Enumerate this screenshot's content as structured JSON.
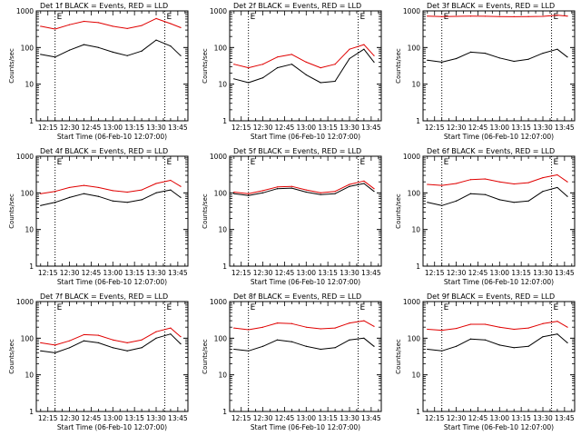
{
  "figure": {
    "colors": {
      "events": "#000000",
      "lld": "#e00000",
      "axis": "#000000"
    }
  },
  "chart_data": [
    {
      "type": "line",
      "title": "Det 1f BLACK = Events, RED = LLD",
      "xlabel": "Start Time (06-Feb-10 12:07:00)",
      "ylabel": "Counts/sec",
      "xlim": [
        "12:07",
        "13:52"
      ],
      "ylim": [
        1,
        1000
      ],
      "yscale": "log",
      "x_ticks": [
        "12:15",
        "12:30",
        "12:45",
        "13:00",
        "13:15",
        "13:30",
        "13:45"
      ],
      "y_ticks": [
        "1",
        "10",
        "100",
        "1000"
      ],
      "markers": [
        {
          "time": "12:20",
          "label": "E"
        },
        {
          "time": "13:36",
          "label": "E"
        }
      ],
      "x": [
        "12:10",
        "12:20",
        "12:30",
        "12:40",
        "12:50",
        "13:00",
        "13:10",
        "13:20",
        "13:30",
        "13:40",
        "13:47"
      ],
      "series": [
        {
          "values": [
            65,
            55,
            85,
            120,
            100,
            75,
            60,
            80,
            160,
            110,
            60
          ]
        },
        {
          "values": [
            380,
            320,
            420,
            520,
            480,
            380,
            330,
            400,
            620,
            450,
            350
          ]
        }
      ]
    },
    {
      "type": "line",
      "title": "Det 2f BLACK = Events, RED = LLD",
      "xlabel": "Start Time (06-Feb-10 12:07:00)",
      "ylabel": "Counts/sec",
      "xlim": [
        "12:07",
        "13:52"
      ],
      "ylim": [
        1,
        1000
      ],
      "yscale": "log",
      "x_ticks": [
        "12:15",
        "12:30",
        "12:45",
        "13:00",
        "13:15",
        "13:30",
        "13:45"
      ],
      "y_ticks": [
        "1",
        "10",
        "100",
        "1000"
      ],
      "markers": [
        {
          "time": "12:20",
          "label": "E"
        },
        {
          "time": "13:36",
          "label": "E"
        }
      ],
      "x": [
        "12:10",
        "12:20",
        "12:30",
        "12:40",
        "12:50",
        "13:00",
        "13:10",
        "13:20",
        "13:30",
        "13:40",
        "13:47"
      ],
      "series": [
        {
          "values": [
            14,
            11,
            15,
            28,
            35,
            18,
            11,
            12,
            50,
            90,
            40
          ]
        },
        {
          "values": [
            35,
            28,
            35,
            55,
            65,
            40,
            28,
            35,
            90,
            120,
            60
          ]
        }
      ]
    },
    {
      "type": "line",
      "title": "Det 3f BLACK = Events, RED = LLD",
      "xlabel": "Start Time (06-Feb-10 12:07:00)",
      "ylabel": "Counts/sec",
      "xlim": [
        "12:07",
        "13:52"
      ],
      "ylim": [
        1,
        1000
      ],
      "yscale": "log",
      "x_ticks": [
        "12:15",
        "12:30",
        "12:45",
        "13:00",
        "13:15",
        "13:30",
        "13:45"
      ],
      "y_ticks": [
        "1",
        "10",
        "100",
        "1000"
      ],
      "markers": [
        {
          "time": "12:20",
          "label": "E"
        },
        {
          "time": "13:36",
          "label": "E"
        }
      ],
      "x": [
        "12:10",
        "12:20",
        "12:30",
        "12:40",
        "12:50",
        "13:00",
        "13:10",
        "13:20",
        "13:30",
        "13:40",
        "13:47"
      ],
      "series": [
        {
          "values": [
            45,
            40,
            50,
            75,
            70,
            52,
            42,
            48,
            70,
            90,
            55
          ]
        },
        {
          "values": [
            720,
            700,
            710,
            720,
            715,
            700,
            695,
            700,
            710,
            760,
            720
          ]
        }
      ]
    },
    {
      "type": "line",
      "title": "Det 4f BLACK = Events, RED = LLD",
      "xlabel": "Start Time (06-Feb-10 12:07:00)",
      "ylabel": "Counts/sec",
      "xlim": [
        "12:07",
        "13:52"
      ],
      "ylim": [
        1,
        1000
      ],
      "yscale": "log",
      "x_ticks": [
        "12:15",
        "12:30",
        "12:45",
        "13:00",
        "13:15",
        "13:30",
        "13:45"
      ],
      "y_ticks": [
        "1",
        "10",
        "100",
        "1000"
      ],
      "markers": [
        {
          "time": "12:20",
          "label": "E"
        },
        {
          "time": "13:36",
          "label": "E"
        }
      ],
      "x": [
        "12:10",
        "12:20",
        "12:30",
        "12:40",
        "12:50",
        "13:00",
        "13:10",
        "13:20",
        "13:30",
        "13:40",
        "13:47"
      ],
      "series": [
        {
          "values": [
            45,
            55,
            75,
            95,
            80,
            60,
            55,
            65,
            100,
            120,
            75
          ]
        },
        {
          "values": [
            95,
            110,
            140,
            160,
            140,
            115,
            105,
            120,
            180,
            220,
            150
          ]
        }
      ]
    },
    {
      "type": "line",
      "title": "Det 5f BLACK = Events, RED = LLD",
      "xlabel": "Start Time (06-Feb-10 12:07:00)",
      "ylabel": "Counts/sec",
      "xlim": [
        "12:07",
        "13:52"
      ],
      "ylim": [
        1,
        1000
      ],
      "yscale": "log",
      "x_ticks": [
        "12:15",
        "12:30",
        "12:45",
        "13:00",
        "13:15",
        "13:30",
        "13:45"
      ],
      "y_ticks": [
        "1",
        "10",
        "100",
        "1000"
      ],
      "markers": [
        {
          "time": "12:20",
          "label": "E"
        },
        {
          "time": "13:36",
          "label": "E"
        }
      ],
      "x": [
        "12:10",
        "12:20",
        "12:30",
        "12:40",
        "12:50",
        "13:00",
        "13:10",
        "13:20",
        "13:30",
        "13:40",
        "13:47"
      ],
      "series": [
        {
          "values": [
            95,
            85,
            100,
            130,
            135,
            105,
            90,
            95,
            150,
            180,
            110
          ]
        },
        {
          "values": [
            105,
            95,
            115,
            145,
            150,
            120,
            100,
            110,
            170,
            210,
            130
          ]
        }
      ]
    },
    {
      "type": "line",
      "title": "Det 6f BLACK = Events, RED = LLD",
      "xlabel": "Start Time (06-Feb-10 12:07:00)",
      "ylabel": "Counts/sec",
      "xlim": [
        "12:07",
        "13:52"
      ],
      "ylim": [
        1,
        1000
      ],
      "yscale": "log",
      "x_ticks": [
        "12:15",
        "12:30",
        "12:45",
        "13:00",
        "13:15",
        "13:30",
        "13:45"
      ],
      "y_ticks": [
        "1",
        "10",
        "100",
        "1000"
      ],
      "markers": [
        {
          "time": "12:20",
          "label": "E"
        },
        {
          "time": "13:36",
          "label": "E"
        }
      ],
      "x": [
        "12:10",
        "12:20",
        "12:30",
        "12:40",
        "12:50",
        "13:00",
        "13:10",
        "13:20",
        "13:30",
        "13:40",
        "13:47"
      ],
      "series": [
        {
          "values": [
            55,
            45,
            60,
            95,
            90,
            65,
            55,
            60,
            110,
            140,
            80
          ]
        },
        {
          "values": [
            170,
            160,
            180,
            230,
            240,
            200,
            175,
            190,
            260,
            310,
            200
          ]
        }
      ]
    },
    {
      "type": "line",
      "title": "Det 7f BLACK = Events, RED = LLD",
      "xlabel": "Start Time (06-Feb-10 12:07:00)",
      "ylabel": "Counts/sec",
      "xlim": [
        "12:07",
        "13:52"
      ],
      "ylim": [
        1,
        1000
      ],
      "yscale": "log",
      "x_ticks": [
        "12:15",
        "12:30",
        "12:45",
        "13:00",
        "13:15",
        "13:30",
        "13:45"
      ],
      "y_ticks": [
        "1",
        "10",
        "100",
        "1000"
      ],
      "markers": [
        {
          "time": "12:20",
          "label": "E"
        },
        {
          "time": "13:36",
          "label": "E"
        }
      ],
      "x": [
        "12:10",
        "12:20",
        "12:30",
        "12:40",
        "12:50",
        "13:00",
        "13:10",
        "13:20",
        "13:30",
        "13:40",
        "13:47"
      ],
      "series": [
        {
          "values": [
            45,
            40,
            55,
            85,
            75,
            55,
            45,
            55,
            100,
            130,
            70
          ]
        },
        {
          "values": [
            75,
            65,
            85,
            125,
            120,
            90,
            75,
            90,
            150,
            190,
            110
          ]
        }
      ]
    },
    {
      "type": "line",
      "title": "Det 8f BLACK = Events, RED = LLD",
      "xlabel": "Start Time (06-Feb-10 12:07:00)",
      "ylabel": "Counts/sec",
      "xlim": [
        "12:07",
        "13:52"
      ],
      "ylim": [
        1,
        1000
      ],
      "yscale": "log",
      "x_ticks": [
        "12:15",
        "12:30",
        "12:45",
        "13:00",
        "13:15",
        "13:30",
        "13:45"
      ],
      "y_ticks": [
        "1",
        "10",
        "100",
        "1000"
      ],
      "markers": [
        {
          "time": "12:20",
          "label": "E"
        },
        {
          "time": "13:36",
          "label": "E"
        }
      ],
      "x": [
        "12:10",
        "12:20",
        "12:30",
        "12:40",
        "12:50",
        "13:00",
        "13:10",
        "13:20",
        "13:30",
        "13:40",
        "13:47"
      ],
      "series": [
        {
          "values": [
            50,
            45,
            60,
            90,
            80,
            60,
            50,
            55,
            90,
            100,
            60
          ]
        },
        {
          "values": [
            190,
            170,
            200,
            260,
            250,
            200,
            180,
            190,
            260,
            300,
            210
          ]
        }
      ]
    },
    {
      "type": "line",
      "title": "Det 9f BLACK = Events, RED = LLD",
      "xlabel": "Start Time (06-Feb-10 12:07:00)",
      "ylabel": "Counts/sec",
      "xlim": [
        "12:07",
        "13:52"
      ],
      "ylim": [
        1,
        1000
      ],
      "yscale": "log",
      "x_ticks": [
        "12:15",
        "12:30",
        "12:45",
        "13:00",
        "13:15",
        "13:30",
        "13:45"
      ],
      "y_ticks": [
        "1",
        "10",
        "100",
        "1000"
      ],
      "markers": [
        {
          "time": "12:20",
          "label": "E"
        },
        {
          "time": "13:36",
          "label": "E"
        }
      ],
      "x": [
        "12:10",
        "12:20",
        "12:30",
        "12:40",
        "12:50",
        "13:00",
        "13:10",
        "13:20",
        "13:30",
        "13:40",
        "13:47"
      ],
      "series": [
        {
          "values": [
            50,
            45,
            60,
            95,
            90,
            65,
            55,
            60,
            110,
            130,
            75
          ]
        },
        {
          "values": [
            175,
            165,
            185,
            240,
            240,
            200,
            175,
            190,
            250,
            290,
            200
          ]
        }
      ]
    }
  ]
}
